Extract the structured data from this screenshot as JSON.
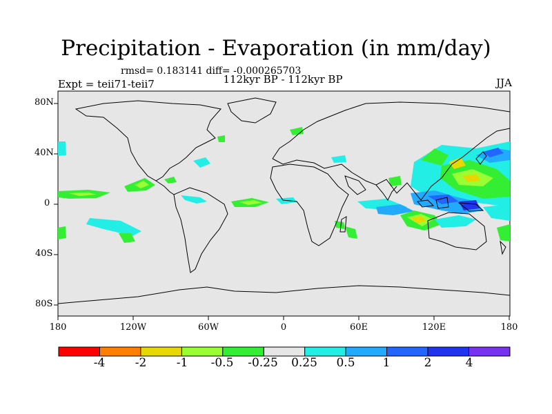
{
  "title": "Precipitation - Evaporation (in mm/day)",
  "stats": "rmsd= 0.183141 diff= -0.000265703",
  "subtitle": "112kyr BP - 112kyr BP",
  "experiment": "Expt = teii71-teii7",
  "season": "JJA",
  "map": {
    "projection": "cylindrical equidistant",
    "lon_range": [
      -180,
      180
    ],
    "lat_range": [
      -90,
      90
    ],
    "lat_labels": [
      "80N",
      "40N",
      "0",
      "40S",
      "80S"
    ],
    "lon_labels": [
      "180",
      "120W",
      "60W",
      "0",
      "60E",
      "120E",
      "180"
    ],
    "background": "#e6e6e6"
  },
  "colorbar": {
    "colors": [
      "#ff0000",
      "#ff8000",
      "#e6d800",
      "#99ff33",
      "#33ee33",
      "#e6e6e6",
      "#22eee6",
      "#22aaff",
      "#2266ff",
      "#2233ee",
      "#7733ee"
    ],
    "labels": [
      "-4",
      "-2",
      "-1",
      "-0.5",
      "-0.25",
      "0.25",
      "0.5",
      "1",
      "2",
      "4"
    ]
  }
}
